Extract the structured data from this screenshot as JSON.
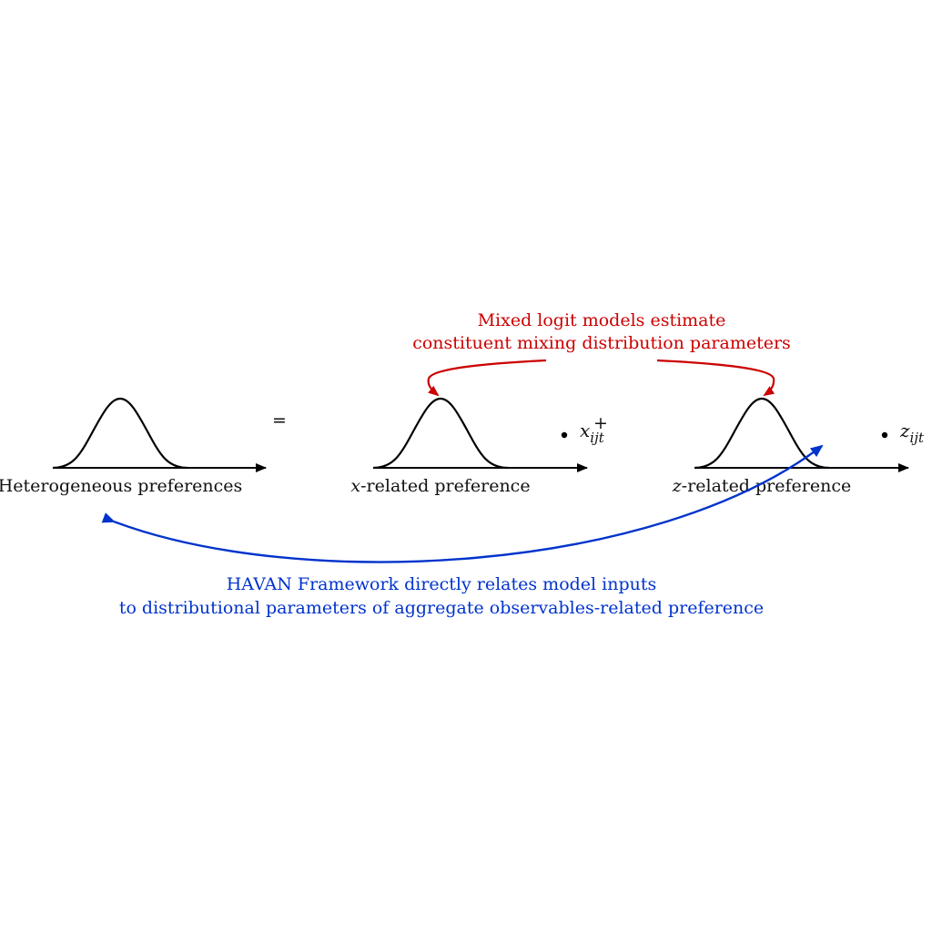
{
  "equals_sign": "=",
  "plus_sign": "+",
  "panels": [
    {
      "label": "Heterogeneous preferences"
    },
    {
      "label_var": "x",
      "label_rest": "-related preference",
      "term_main": "x",
      "term_sub": "ijt"
    },
    {
      "label_var": "z",
      "label_rest": "-related preference",
      "term_main": "z",
      "term_sub": "ijt"
    }
  ],
  "red_annotation": {
    "line1": "Mixed logit models estimate",
    "line2": "constituent mixing distribution parameters",
    "color": "#cc0000"
  },
  "blue_annotation": {
    "line1": "HAVAN Framework directly relates model inputs",
    "line2": "to distributional parameters of aggregate observables-related preference",
    "color": "#0033cc"
  }
}
